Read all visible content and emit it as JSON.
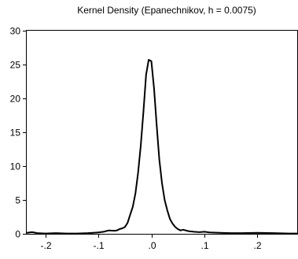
{
  "chart_data": {
    "type": "line",
    "title": "Kernel Density (Epanechnikov, h =  0.0075)",
    "xlabel": "",
    "ylabel": "",
    "xlim": [
      -0.235,
      0.275
    ],
    "ylim": [
      0,
      30
    ],
    "x_ticks": [
      -0.2,
      -0.1,
      0.0,
      0.1,
      0.2
    ],
    "x_tick_labels": [
      "-.2",
      "-.1",
      ".0",
      ".1",
      ".2"
    ],
    "y_ticks": [
      0,
      5,
      10,
      15,
      20,
      25,
      30
    ],
    "y_tick_labels": [
      "0",
      "5",
      "10",
      "15",
      "20",
      "25",
      "30"
    ],
    "grid": false,
    "series": [
      {
        "color": "#000000",
        "x": [
          -0.235,
          -0.225,
          -0.215,
          -0.2,
          -0.18,
          -0.16,
          -0.14,
          -0.12,
          -0.11,
          -0.1,
          -0.09,
          -0.08,
          -0.07,
          -0.065,
          -0.06,
          -0.055,
          -0.05,
          -0.045,
          -0.04,
          -0.035,
          -0.03,
          -0.025,
          -0.02,
          -0.015,
          -0.01,
          -0.005,
          0.0,
          0.005,
          0.01,
          0.015,
          0.02,
          0.025,
          0.03,
          0.035,
          0.04,
          0.045,
          0.05,
          0.055,
          0.06,
          0.07,
          0.08,
          0.09,
          0.1,
          0.11,
          0.13,
          0.15,
          0.17,
          0.2,
          0.23,
          0.26,
          0.275
        ],
        "y": [
          0.15,
          0.25,
          0.1,
          0.05,
          0.1,
          0.05,
          0.05,
          0.1,
          0.15,
          0.2,
          0.3,
          0.5,
          0.45,
          0.5,
          0.7,
          0.8,
          1.0,
          1.6,
          2.8,
          4.0,
          6.0,
          9.0,
          13.0,
          18.0,
          23.5,
          25.7,
          25.5,
          21.5,
          16.0,
          11.0,
          7.5,
          5.0,
          3.5,
          2.2,
          1.5,
          1.0,
          0.7,
          0.5,
          0.6,
          0.4,
          0.3,
          0.25,
          0.3,
          0.2,
          0.15,
          0.1,
          0.1,
          0.15,
          0.1,
          0.05,
          0.05
        ]
      }
    ]
  }
}
